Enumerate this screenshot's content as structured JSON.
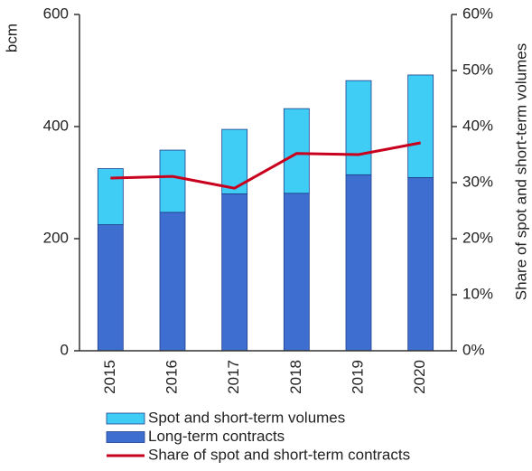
{
  "chart_data": {
    "type": "bar",
    "y_label": "bcm",
    "y2_label": "Share of spot and short-term volumes",
    "categories": [
      "2015",
      "2016",
      "2017",
      "2018",
      "2019",
      "2020"
    ],
    "stacked": true,
    "series": [
      {
        "name": "Spot and short-term volumes",
        "color": "#40cdf5",
        "values": [
          100,
          111,
          115,
          151,
          168,
          183
        ],
        "stack_order": 2
      },
      {
        "name": "Long-term contracts",
        "color": "#3e6ed0",
        "values": [
          225,
          247,
          280,
          281,
          314,
          309
        ],
        "stack_order": 1
      },
      {
        "name": "Share of spot and short-term contracts",
        "color": "#c8001e",
        "type": "line",
        "axis": "y2",
        "values": [
          30.8,
          31.1,
          29,
          35.2,
          35,
          37.1
        ]
      }
    ],
    "ylim": [
      0,
      600
    ],
    "yticks": [
      0,
      200,
      400,
      600
    ],
    "y2lim": [
      0,
      60
    ],
    "y2ticks": [
      {
        "value": 0,
        "label": "0%"
      },
      {
        "value": 10,
        "label": "10%"
      },
      {
        "value": 20,
        "label": "20%"
      },
      {
        "value": 30,
        "label": "30%"
      },
      {
        "value": 40,
        "label": "40%"
      },
      {
        "value": 50,
        "label": "50%"
      },
      {
        "value": 60,
        "label": "60%"
      }
    ],
    "legend": "bottom"
  }
}
